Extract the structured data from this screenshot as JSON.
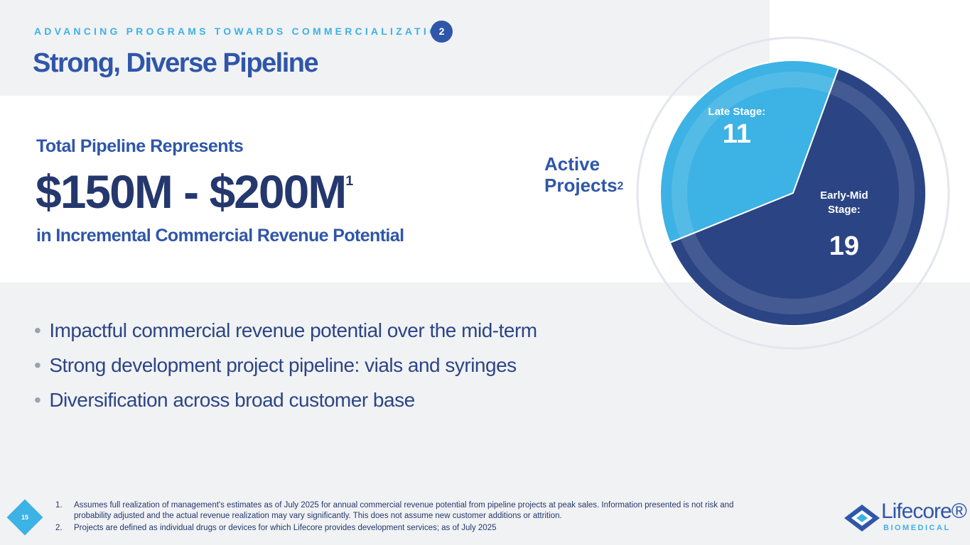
{
  "header": {
    "kicker": "ADVANCING PROGRAMS TOWARDS COMMERCIALIZATION",
    "badge": "2",
    "title": "Strong, Diverse Pipeline"
  },
  "highlight": {
    "intro": "Total Pipeline Represents",
    "amount": "$150M - $200M",
    "amount_note": "1",
    "outro": "in Incremental Commercial Revenue Potential"
  },
  "chart_data": {
    "type": "pie",
    "title": "Active Projects",
    "title_note": "2",
    "categories": [
      "Late Stage:",
      "Early-Mid Stage:"
    ],
    "values": [
      11,
      19
    ],
    "colors": [
      "#3db2e4",
      "#2b4483"
    ]
  },
  "bullets": [
    "Impactful commercial revenue potential over the mid-term",
    "Strong development project pipeline: vials and syringes",
    "Diversification across broad customer base"
  ],
  "footnotes": [
    {
      "number": "1.",
      "text": "Assumes full realization of management's estimates as of July 2025 for annual commercial revenue potential from pipeline projects at peak sales. Information presented is not risk and probability adjusted and the actual revenue realization may vary significantly. This does not assume new customer additions or attrition."
    },
    {
      "number": "2.",
      "text": "Projects are defined as individual drugs or devices for which Lifecore provides development services; as of July 2025"
    }
  ],
  "page_number": "15",
  "logo": {
    "name": "Lifecore®",
    "tagline": "BIOMEDICAL"
  }
}
